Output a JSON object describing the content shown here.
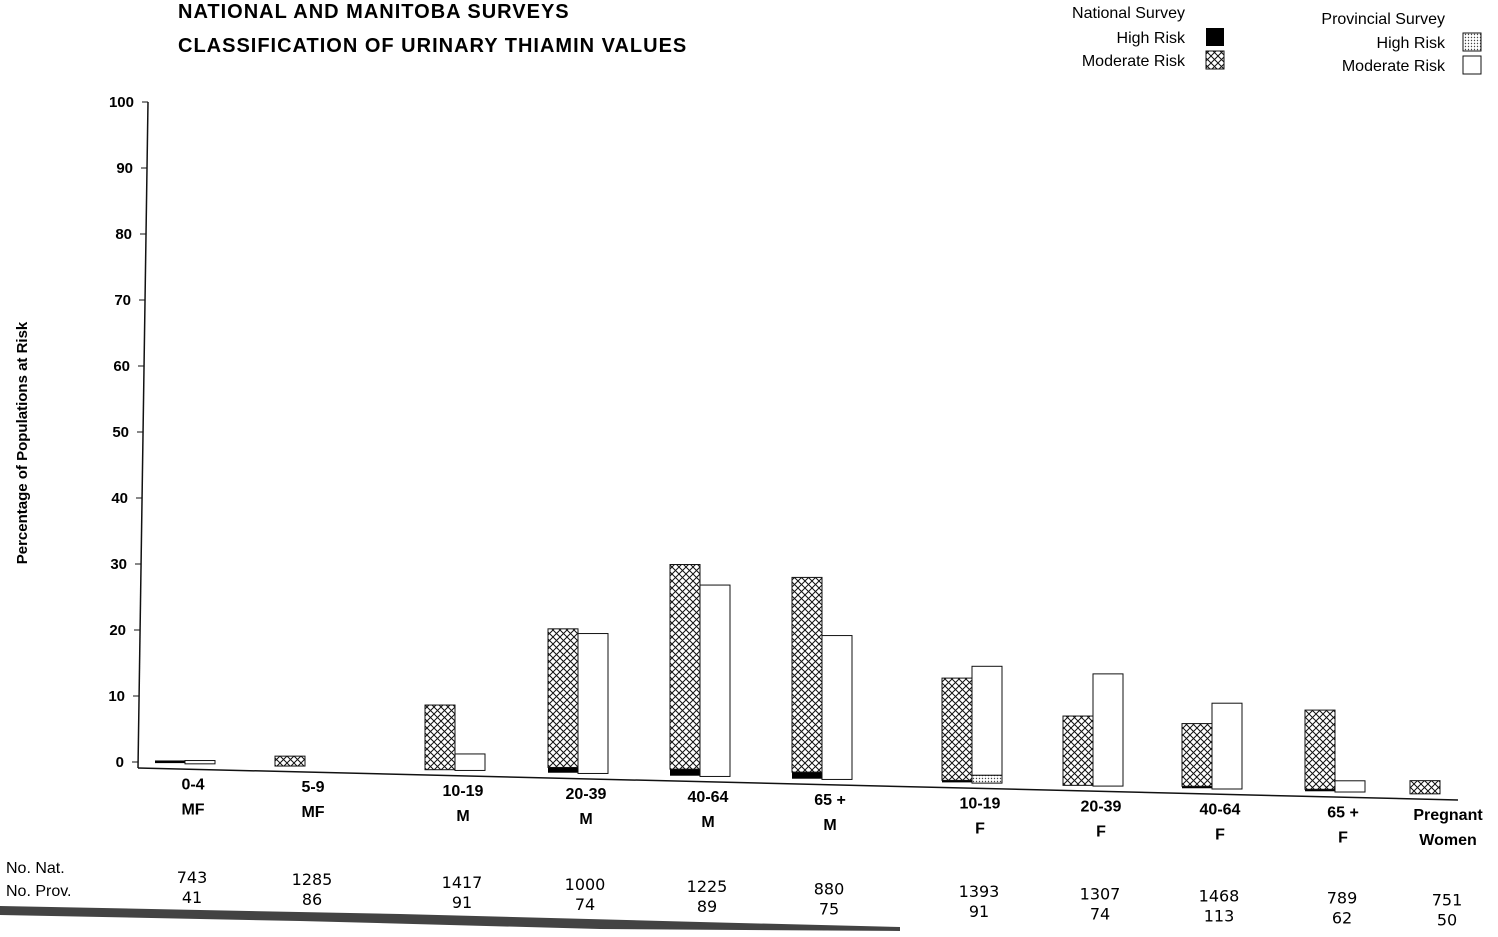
{
  "chart_data": {
    "type": "bar",
    "title": "NATIONAL AND MANITOBA SURVEYS",
    "subtitle": "CLASSIFICATION OF URINARY THIAMIN VALUES",
    "ylabel": "Percentage of Populations at Risk",
    "xlabel": "",
    "ylim": [
      0,
      100
    ],
    "yticks": [
      "0",
      "10",
      "20",
      "30",
      "40",
      "50",
      "60",
      "70",
      "80",
      "90",
      "100"
    ],
    "grid": false,
    "legend_position": "top-right",
    "legend": {
      "national": {
        "heading": "National Survey",
        "high": "High Risk",
        "moderate": "Moderate Risk"
      },
      "provincial": {
        "heading": "Provincial Survey",
        "high": "High Risk",
        "moderate": "Moderate Risk"
      }
    },
    "categories": [
      {
        "age": "0-4",
        "sex": "MF"
      },
      {
        "age": "5-9",
        "sex": "MF"
      },
      {
        "age": "10-19",
        "sex": "M"
      },
      {
        "age": "20-39",
        "sex": "M"
      },
      {
        "age": "40-64",
        "sex": "M"
      },
      {
        "age": "65 +",
        "sex": "M"
      },
      {
        "age": "10-19",
        "sex": "F"
      },
      {
        "age": "20-39",
        "sex": "F"
      },
      {
        "age": "40-64",
        "sex": "F"
      },
      {
        "age": "65 +",
        "sex": "F"
      },
      {
        "age": "Pregnant",
        "sex": "Women"
      }
    ],
    "series": [
      {
        "name": "National Survey High Risk",
        "values": [
          0.4,
          0,
          0,
          0.8,
          1.0,
          1.0,
          0.3,
          0,
          0.3,
          0.3,
          0
        ]
      },
      {
        "name": "National Survey Moderate Risk",
        "values": [
          0,
          1.5,
          9.8,
          21,
          31,
          29.5,
          15.5,
          10.5,
          9.5,
          12,
          2
        ]
      },
      {
        "name": "Provincial Survey High Risk",
        "values": [
          0,
          0,
          0,
          0,
          0,
          0,
          1.2,
          0,
          0,
          0,
          0
        ]
      },
      {
        "name": "Provincial Survey Moderate Risk",
        "values": [
          0.5,
          0,
          2.5,
          21.2,
          29,
          21.8,
          16.5,
          17,
          13,
          1.7,
          0
        ]
      }
    ],
    "row_labels": {
      "national": "No. Nat.",
      "provincial": "No. Prov."
    },
    "counts_national": [
      "743",
      "1285",
      "1417",
      "1000",
      "1225",
      "880",
      "1393",
      "1307",
      "1468",
      "789",
      "751"
    ],
    "counts_provincial": [
      "41",
      "86",
      "91",
      "74",
      "89",
      "75",
      "91",
      "74",
      "113",
      "62",
      "50"
    ]
  }
}
